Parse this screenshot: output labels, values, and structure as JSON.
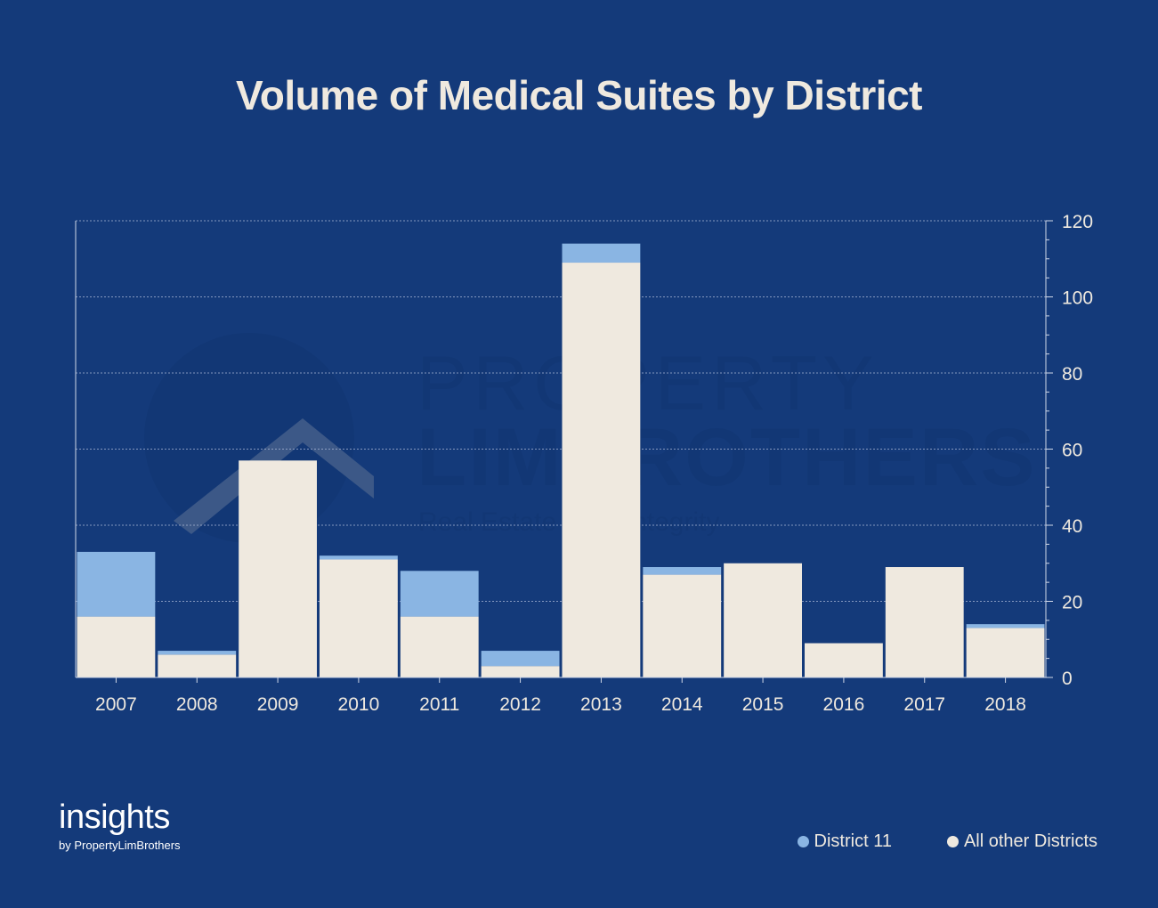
{
  "chart_data": {
    "type": "bar",
    "stacked": true,
    "title": "Volume of Medical Suites by District",
    "categories": [
      "2007",
      "2008",
      "2009",
      "2010",
      "2011",
      "2012",
      "2013",
      "2014",
      "2015",
      "2016",
      "2017",
      "2018"
    ],
    "series": [
      {
        "name": "All other Districts",
        "color": "#efe9df",
        "values": [
          16,
          6,
          57,
          31,
          16,
          3,
          109,
          27,
          30,
          9,
          29,
          13
        ]
      },
      {
        "name": "District 11",
        "color": "#8ab5e3",
        "values": [
          17,
          1,
          0,
          1,
          12,
          4,
          5,
          2,
          0,
          0,
          0,
          1
        ]
      }
    ],
    "y_axis": {
      "position": "right",
      "ylim": [
        0,
        120
      ],
      "ticks": [
        0,
        20,
        40,
        60,
        80,
        100,
        120
      ]
    },
    "grid": true,
    "legend": {
      "placement": "bottom-right"
    }
  },
  "watermark": {
    "line1": "PROPERTY",
    "line2": "LIMBROTHERS",
    "line3": "Real Estate With Integrity"
  },
  "brand": {
    "name": "insights",
    "tagline": "by PropertyLimBrothers"
  },
  "legend": {
    "district11": "District 11",
    "others": "All other Districts"
  }
}
